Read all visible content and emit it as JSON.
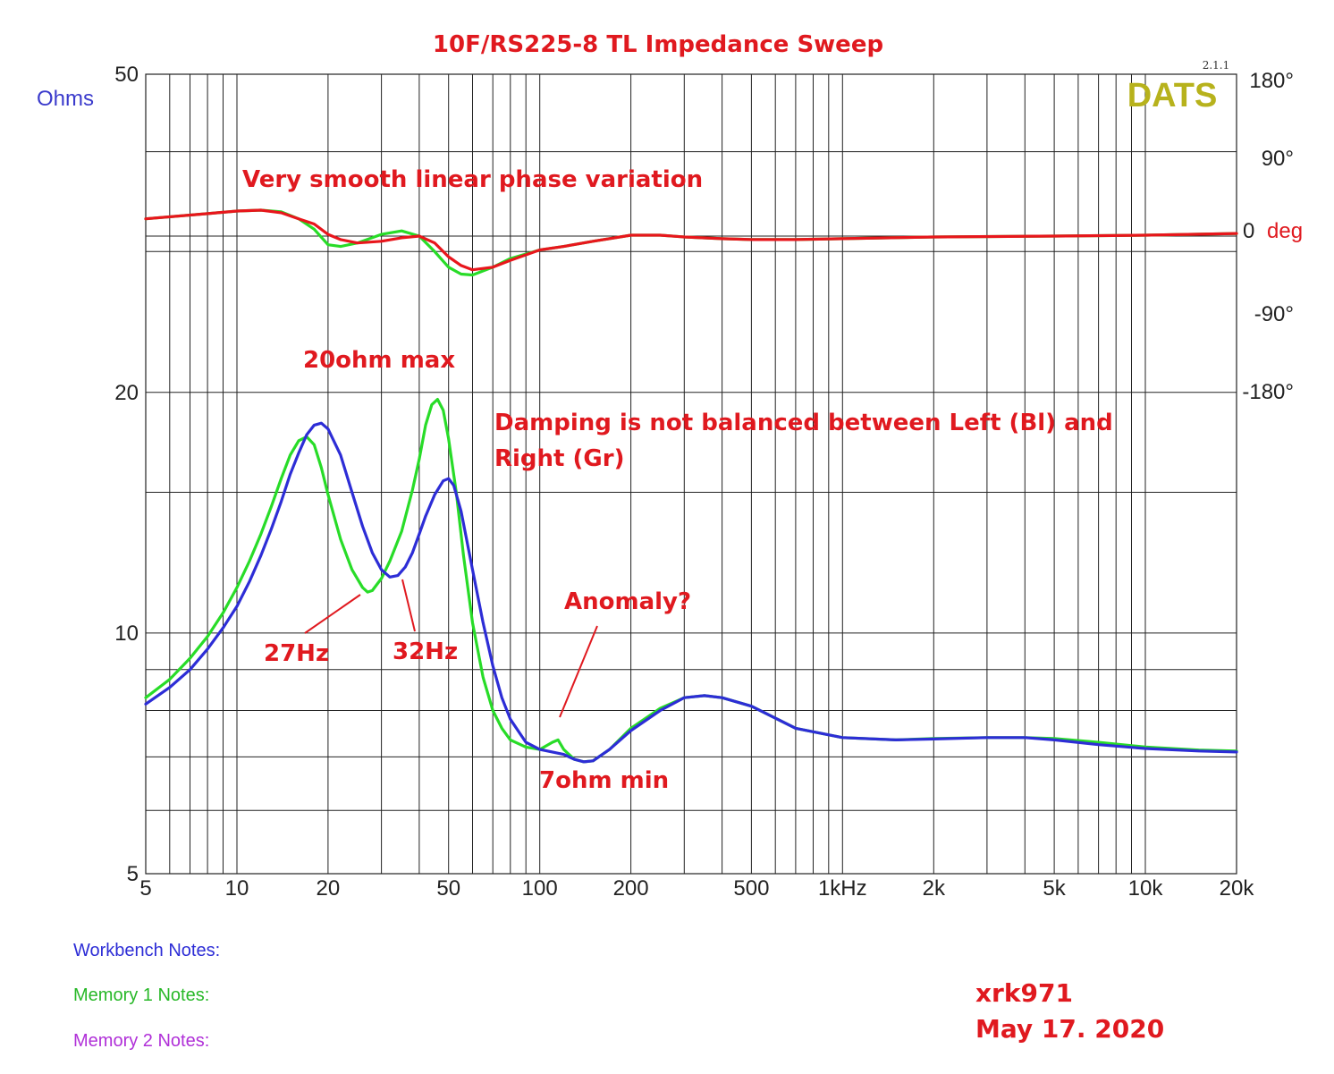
{
  "colors": {
    "title": "#e0191f",
    "annotation": "#e0191f",
    "workbench": "#2d2dd6",
    "memory1": "#28dc28",
    "memory2": "#b030d8",
    "phase": "#e8161c",
    "dats": "#b7b21c",
    "axis_left_label": "#3b3bcc",
    "grid": "#222222"
  },
  "chart_data": {
    "type": "line",
    "title": "10F/RS225-8 TL Impedance Sweep",
    "version": "2.1.1",
    "logo": "DATS",
    "x_scale": "log",
    "xlim": [
      5,
      20000
    ],
    "x_ticks": [
      {
        "v": 5,
        "label": "5"
      },
      {
        "v": 10,
        "label": "10"
      },
      {
        "v": 20,
        "label": "20"
      },
      {
        "v": 50,
        "label": "50"
      },
      {
        "v": 100,
        "label": "100"
      },
      {
        "v": 200,
        "label": "200"
      },
      {
        "v": 500,
        "label": "500"
      },
      {
        "v": 1000,
        "label": "1kHz"
      },
      {
        "v": 2000,
        "label": "2k"
      },
      {
        "v": 5000,
        "label": "5k"
      },
      {
        "v": 10000,
        "label": "10k"
      },
      {
        "v": 20000,
        "label": "20k"
      }
    ],
    "y_left": {
      "label": "Ohms",
      "scale": "log",
      "ylim": [
        5,
        50
      ],
      "ticks": [
        {
          "v": 50,
          "label": "50"
        },
        {
          "v": 20,
          "label": "20"
        },
        {
          "v": 10,
          "label": "10"
        },
        {
          "v": 5,
          "label": "5"
        }
      ],
      "gridlines": [
        50,
        40,
        30,
        20,
        15,
        10,
        9,
        8,
        7,
        6,
        5
      ]
    },
    "y_right": {
      "unit_prefix": "0",
      "unit_label": "deg",
      "ylim_deg": [
        -180,
        180
      ],
      "ticks": [
        {
          "v": 180,
          "label": "180°"
        },
        {
          "v": 90,
          "label": "90°"
        },
        {
          "v": -90,
          "label": "-90°"
        },
        {
          "v": -180,
          "label": "-180°"
        }
      ]
    },
    "grid": true,
    "series": [
      {
        "axis": "left",
        "color_key": "memory1",
        "points": [
          [
            5,
            8.3
          ],
          [
            6,
            8.75
          ],
          [
            7,
            9.3
          ],
          [
            8,
            9.9
          ],
          [
            9,
            10.6
          ],
          [
            10,
            11.4
          ],
          [
            11,
            12.3
          ],
          [
            12,
            13.3
          ],
          [
            13,
            14.4
          ],
          [
            14,
            15.6
          ],
          [
            15,
            16.7
          ],
          [
            16,
            17.4
          ],
          [
            17,
            17.6
          ],
          [
            18,
            17.2
          ],
          [
            19,
            16.1
          ],
          [
            20,
            14.9
          ],
          [
            22,
            13.1
          ],
          [
            24,
            12.0
          ],
          [
            26,
            11.4
          ],
          [
            27,
            11.25
          ],
          [
            28,
            11.3
          ],
          [
            30,
            11.7
          ],
          [
            32,
            12.3
          ],
          [
            35,
            13.4
          ],
          [
            38,
            15.1
          ],
          [
            40,
            16.5
          ],
          [
            42,
            18.2
          ],
          [
            44,
            19.3
          ],
          [
            46,
            19.6
          ],
          [
            48,
            19.0
          ],
          [
            50,
            17.5
          ],
          [
            53,
            15.0
          ],
          [
            56,
            12.5
          ],
          [
            60,
            10.3
          ],
          [
            65,
            8.8
          ],
          [
            70,
            8.0
          ],
          [
            75,
            7.6
          ],
          [
            80,
            7.35
          ],
          [
            90,
            7.2
          ],
          [
            100,
            7.15
          ],
          [
            110,
            7.3
          ],
          [
            115,
            7.35
          ],
          [
            120,
            7.15
          ],
          [
            130,
            6.95
          ],
          [
            140,
            6.9
          ],
          [
            150,
            6.92
          ],
          [
            170,
            7.15
          ],
          [
            200,
            7.6
          ],
          [
            250,
            8.05
          ],
          [
            300,
            8.3
          ],
          [
            350,
            8.35
          ],
          [
            400,
            8.3
          ],
          [
            500,
            8.1
          ],
          [
            700,
            7.6
          ],
          [
            1000,
            7.4
          ],
          [
            1500,
            7.35
          ],
          [
            2000,
            7.38
          ],
          [
            3000,
            7.4
          ],
          [
            4000,
            7.4
          ],
          [
            5000,
            7.38
          ],
          [
            7000,
            7.3
          ],
          [
            10000,
            7.2
          ],
          [
            15000,
            7.14
          ],
          [
            20000,
            7.12
          ]
        ]
      },
      {
        "axis": "left",
        "color_key": "workbench",
        "points": [
          [
            5,
            8.15
          ],
          [
            6,
            8.55
          ],
          [
            7,
            9.0
          ],
          [
            8,
            9.55
          ],
          [
            9,
            10.15
          ],
          [
            10,
            10.8
          ],
          [
            11,
            11.6
          ],
          [
            12,
            12.5
          ],
          [
            13,
            13.5
          ],
          [
            14,
            14.6
          ],
          [
            15,
            15.8
          ],
          [
            16,
            16.8
          ],
          [
            17,
            17.7
          ],
          [
            18,
            18.2
          ],
          [
            19,
            18.3
          ],
          [
            20,
            18.0
          ],
          [
            22,
            16.7
          ],
          [
            24,
            15.0
          ],
          [
            26,
            13.6
          ],
          [
            28,
            12.6
          ],
          [
            30,
            12.0
          ],
          [
            32,
            11.75
          ],
          [
            34,
            11.8
          ],
          [
            36,
            12.1
          ],
          [
            38,
            12.6
          ],
          [
            40,
            13.3
          ],
          [
            42,
            14.0
          ],
          [
            45,
            14.9
          ],
          [
            48,
            15.5
          ],
          [
            50,
            15.6
          ],
          [
            52,
            15.3
          ],
          [
            55,
            14.2
          ],
          [
            60,
            12.0
          ],
          [
            65,
            10.3
          ],
          [
            70,
            9.1
          ],
          [
            75,
            8.3
          ],
          [
            80,
            7.8
          ],
          [
            90,
            7.3
          ],
          [
            100,
            7.15
          ],
          [
            110,
            7.1
          ],
          [
            120,
            7.05
          ],
          [
            130,
            6.95
          ],
          [
            140,
            6.9
          ],
          [
            150,
            6.92
          ],
          [
            170,
            7.15
          ],
          [
            200,
            7.55
          ],
          [
            250,
            8.0
          ],
          [
            300,
            8.3
          ],
          [
            350,
            8.35
          ],
          [
            400,
            8.3
          ],
          [
            500,
            8.1
          ],
          [
            700,
            7.6
          ],
          [
            1000,
            7.4
          ],
          [
            1500,
            7.35
          ],
          [
            2000,
            7.37
          ],
          [
            3000,
            7.4
          ],
          [
            4000,
            7.4
          ],
          [
            5000,
            7.35
          ],
          [
            7000,
            7.25
          ],
          [
            10000,
            7.17
          ],
          [
            15000,
            7.12
          ],
          [
            20000,
            7.1
          ]
        ]
      },
      {
        "axis": "right",
        "color_key": "memory1",
        "points": [
          [
            5,
            20
          ],
          [
            8,
            26
          ],
          [
            10,
            29
          ],
          [
            12,
            30
          ],
          [
            14,
            28
          ],
          [
            16,
            20
          ],
          [
            18,
            8
          ],
          [
            20,
            -10
          ],
          [
            22,
            -12
          ],
          [
            25,
            -8
          ],
          [
            30,
            2
          ],
          [
            35,
            6
          ],
          [
            40,
            0
          ],
          [
            45,
            -18
          ],
          [
            50,
            -36
          ],
          [
            55,
            -44
          ],
          [
            60,
            -45
          ],
          [
            70,
            -36
          ],
          [
            80,
            -26
          ],
          [
            100,
            -16
          ],
          [
            120,
            -12
          ],
          [
            150,
            -6
          ],
          [
            200,
            1
          ],
          [
            250,
            1
          ],
          [
            300,
            -1
          ],
          [
            400,
            -3
          ],
          [
            500,
            -4
          ],
          [
            700,
            -4
          ],
          [
            1000,
            -3
          ],
          [
            2000,
            -1
          ],
          [
            5000,
            0
          ],
          [
            10000,
            1
          ],
          [
            20000,
            3
          ]
        ]
      },
      {
        "axis": "right",
        "color_key": "phase",
        "points": [
          [
            5,
            20
          ],
          [
            8,
            26
          ],
          [
            10,
            29
          ],
          [
            12,
            30
          ],
          [
            14,
            27
          ],
          [
            16,
            20
          ],
          [
            18,
            14
          ],
          [
            20,
            2
          ],
          [
            22,
            -4
          ],
          [
            25,
            -8
          ],
          [
            30,
            -6
          ],
          [
            35,
            -2
          ],
          [
            40,
            0
          ],
          [
            45,
            -8
          ],
          [
            50,
            -24
          ],
          [
            55,
            -34
          ],
          [
            60,
            -39
          ],
          [
            70,
            -36
          ],
          [
            80,
            -28
          ],
          [
            100,
            -16
          ],
          [
            120,
            -12
          ],
          [
            150,
            -6
          ],
          [
            200,
            1
          ],
          [
            250,
            1
          ],
          [
            300,
            -1
          ],
          [
            400,
            -3
          ],
          [
            500,
            -4
          ],
          [
            700,
            -4
          ],
          [
            1000,
            -3
          ],
          [
            2000,
            -1
          ],
          [
            5000,
            0
          ],
          [
            10000,
            1
          ],
          [
            20000,
            3
          ]
        ]
      }
    ],
    "annotations": [
      {
        "key": "phase_note",
        "text": "Very smooth linear phase variation"
      },
      {
        "key": "max_note",
        "text": "20ohm max"
      },
      {
        "key": "damping_line1",
        "text": "Damping is not balanced between Left (Bl)  and"
      },
      {
        "key": "damping_line2",
        "text": "Right (Gr)"
      },
      {
        "key": "anomaly",
        "text": "Anomaly?"
      },
      {
        "key": "hz27",
        "text": "27Hz"
      },
      {
        "key": "hz32",
        "text": "32Hz"
      },
      {
        "key": "min_note",
        "text": "7ohm min"
      }
    ]
  },
  "notes": {
    "workbench": "Workbench Notes:",
    "memory1": "Memory 1 Notes:",
    "memory2": "Memory 2 Notes:"
  },
  "signature": {
    "author": "xrk971",
    "date": "May 17. 2020"
  }
}
